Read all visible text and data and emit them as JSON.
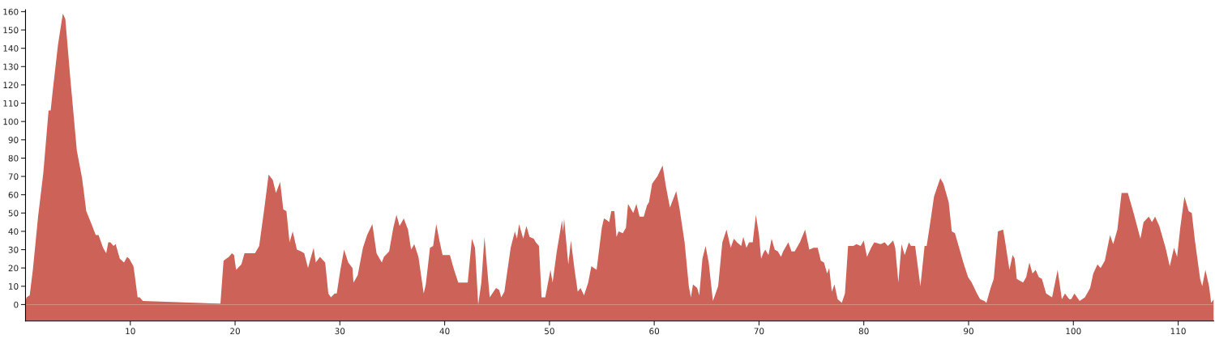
{
  "chart_data": {
    "type": "area",
    "xlim": [
      0,
      113.4
    ],
    "ylim": [
      -9,
      161
    ],
    "xticks": [
      10,
      20,
      30,
      40,
      50,
      60,
      70,
      80,
      90,
      100,
      110
    ],
    "yticks": [
      0,
      10,
      20,
      30,
      40,
      50,
      60,
      70,
      80,
      90,
      100,
      110,
      120,
      130,
      140,
      150,
      160
    ],
    "grid": false,
    "bands": [
      {
        "axis": "y",
        "from": -9,
        "to": 0,
        "color": "#cd6358"
      }
    ],
    "series": [
      {
        "color": "#cd6358",
        "x": [
          0,
          0.1,
          0.4,
          0.7,
          1.2,
          1.7,
          2.2,
          2.4,
          2.6,
          3.1,
          3.56,
          3.8,
          4.3,
          4.9,
          5.4,
          5.8,
          6.3,
          6.7,
          6.97,
          7.4,
          7.7,
          7.9,
          8.1,
          8.4,
          8.6,
          9.0,
          9.4,
          9.7,
          9.9,
          10.3,
          10.4,
          10.7,
          10.9,
          11.2,
          18.6,
          18.9,
          19.4,
          19.7,
          19.9,
          20.1,
          20.6,
          20.9,
          21.4,
          21.9,
          22.3,
          22.8,
          23.2,
          23.6,
          23.9,
          24.3,
          24.6,
          24.9,
          25.2,
          25.5,
          25.9,
          26.3,
          26.6,
          26.96,
          27.2,
          27.5,
          27.7,
          28.1,
          28.6,
          28.9,
          29.15,
          29.5,
          29.7,
          30.05,
          30.4,
          30.8,
          31.2,
          31.3,
          31.7,
          32.2,
          32.6,
          33.1,
          33.5,
          34.0,
          34.2,
          34.7,
          35.1,
          35.4,
          35.7,
          36.1,
          36.5,
          36.8,
          37.1,
          37.5,
          38.0,
          38.2,
          38.6,
          38.9,
          39.2,
          39.5,
          39.8,
          40.5,
          40.9,
          41.3,
          42.2,
          42.6,
          42.9,
          43.2,
          43.5,
          43.8,
          44.1,
          44.3,
          44.9,
          45.2,
          45.4,
          45.7,
          46.3,
          46.7,
          46.9,
          47.1,
          47.5,
          47.8,
          48.1,
          48.5,
          48.7,
          49.0,
          49.25,
          49.6,
          50.1,
          50.3,
          50.7,
          51.2,
          51.3,
          51.4,
          51.8,
          52.05,
          52.4,
          52.7,
          52.97,
          53.3,
          53.7,
          54.0,
          54.5,
          55.0,
          55.2,
          55.5,
          55.7,
          55.9,
          56.2,
          56.4,
          56.6,
          57.0,
          57.3,
          57.5,
          58.0,
          58.3,
          58.6,
          59.0,
          59.3,
          59.5,
          59.8,
          60.3,
          60.8,
          61.1,
          61.5,
          62.1,
          62.4,
          62.9,
          63.3,
          63.5,
          63.7,
          64.1,
          64.3,
          64.6,
          64.9,
          65.2,
          65.6,
          66.1,
          66.5,
          66.9,
          67.3,
          67.6,
          67.9,
          68.3,
          68.5,
          68.8,
          69.05,
          69.4,
          69.7,
          70.0,
          70.2,
          70.4,
          70.6,
          70.9,
          71.2,
          71.5,
          71.8,
          72.1,
          72.3,
          72.8,
          73.1,
          73.4,
          73.9,
          74.4,
          74.8,
          75.2,
          75.6,
          75.9,
          76.2,
          76.5,
          76.7,
          76.95,
          77.2,
          77.5,
          77.9,
          78.2,
          78.5,
          79.0,
          79.3,
          79.7,
          80.0,
          80.3,
          80.7,
          81.0,
          81.6,
          82.0,
          82.3,
          82.8,
          83.0,
          83.3,
          83.6,
          83.9,
          84.3,
          84.5,
          84.9,
          85.4,
          85.8,
          86.0,
          86.4,
          86.7,
          87.0,
          87.3,
          87.6,
          88.1,
          88.4,
          88.7,
          89.05,
          89.5,
          89.95,
          90.3,
          90.8,
          91.1,
          91.5,
          91.7,
          92.1,
          92.4,
          92.8,
          93.3,
          93.5,
          93.9,
          94.2,
          94.4,
          94.6,
          95.2,
          95.5,
          95.8,
          96.1,
          96.4,
          96.7,
          97.0,
          97.4,
          97.97,
          98.5,
          98.9,
          99.2,
          99.6,
          99.8,
          100.1,
          100.6,
          101.1,
          101.6,
          101.9,
          102.3,
          102.6,
          103.0,
          103.5,
          103.8,
          104.2,
          104.6,
          104.8,
          105.2,
          105.7,
          106.4,
          106.7,
          107.2,
          107.5,
          107.8,
          108.2,
          108.8,
          109.2,
          109.6,
          109.9,
          110.2,
          110.6,
          111.0,
          111.3,
          111.6,
          112.1,
          112.3,
          112.6,
          112.95,
          113.15,
          113.4
        ],
        "values": [
          2,
          4,
          5,
          19,
          48,
          72,
          106,
          106,
          117,
          142,
          159,
          156,
          122,
          84,
          69,
          51,
          44,
          38,
          38,
          31,
          28,
          34,
          34,
          32,
          33,
          25,
          23,
          26,
          25,
          21,
          17,
          4,
          4,
          2,
          0.5,
          24,
          26,
          28,
          27,
          19,
          22,
          28,
          28,
          28,
          32,
          53,
          71,
          68,
          61,
          67,
          52,
          51,
          34,
          40,
          30,
          29,
          28,
          20,
          25,
          31,
          23,
          26,
          23,
          6,
          4,
          6,
          6,
          19,
          30,
          23,
          20,
          12,
          16,
          31,
          38,
          44,
          28,
          23,
          26,
          29,
          42,
          49,
          43,
          47,
          41,
          30,
          33,
          26,
          6,
          11,
          31,
          32,
          44,
          35,
          27,
          27,
          19,
          12,
          12,
          36,
          31,
          0,
          12,
          37,
          17,
          4,
          9,
          8,
          4,
          7,
          31,
          40,
          36,
          44,
          36,
          43,
          37,
          36,
          34,
          32,
          4,
          4,
          19,
          12,
          29,
          46,
          40,
          47,
          22,
          35,
          19,
          7,
          9,
          5,
          12,
          21,
          19,
          42,
          47,
          46,
          45,
          51,
          51,
          37,
          40,
          39,
          42,
          55,
          50,
          55,
          48,
          48,
          54,
          56,
          66,
          70,
          76,
          65,
          53,
          62,
          53,
          34,
          10,
          4,
          11,
          9,
          5,
          25,
          32,
          23,
          2,
          10,
          34,
          41,
          31,
          36,
          34,
          32,
          37,
          31,
          34,
          34,
          49,
          38,
          25,
          28,
          30,
          27,
          36,
          30,
          29,
          26,
          29,
          34,
          29,
          29,
          34,
          41,
          30,
          31,
          31,
          24,
          23,
          17,
          20,
          7,
          11,
          3,
          1,
          6,
          32,
          32,
          33,
          32,
          35,
          26,
          31,
          34,
          33,
          34,
          32,
          35,
          31,
          12,
          33,
          27,
          34,
          32,
          32,
          10,
          32,
          32,
          47,
          59,
          64,
          69,
          66,
          56,
          40,
          39,
          32,
          23,
          15,
          12,
          6,
          3,
          2,
          1,
          9,
          14,
          40,
          41,
          34,
          19,
          27,
          25,
          14,
          12,
          15,
          23,
          17,
          19,
          15,
          14,
          6,
          4,
          19,
          3,
          6,
          3,
          3,
          6,
          2,
          4,
          9,
          17,
          22,
          20,
          24,
          38,
          33,
          41,
          61,
          61,
          61,
          51,
          36,
          45,
          48,
          45,
          48,
          43,
          31,
          21,
          31,
          26,
          42,
          59,
          51,
          50,
          35,
          14,
          10,
          19,
          10,
          1,
          3
        ]
      }
    ]
  }
}
